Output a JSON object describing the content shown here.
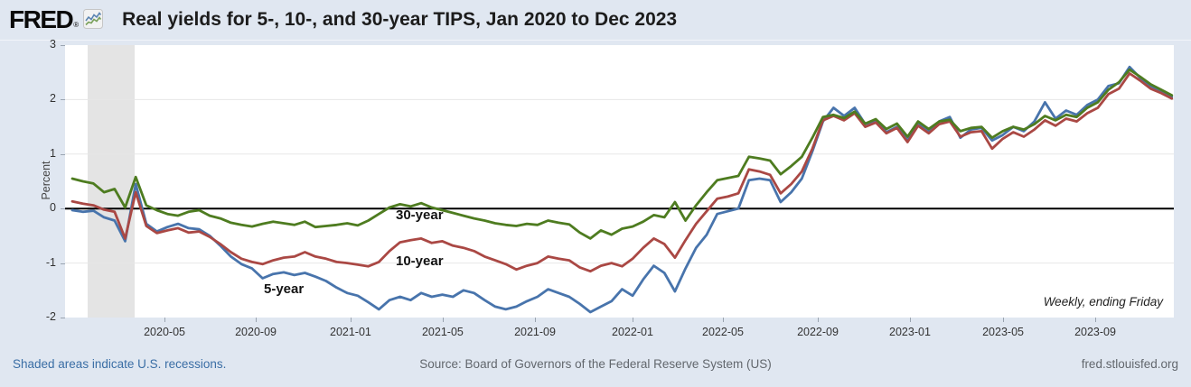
{
  "header": {
    "logo_text": "FRED",
    "logo_registered": "®",
    "title": "Real yields for 5-, 10-, and 30-year TIPS, Jan 2020 to Dec 2023"
  },
  "footer": {
    "recession_note": "Shaded areas indicate U.S. recessions.",
    "source": "Source: Board of Governors of the Federal Reserve System (US)",
    "site": "fred.stlouisfed.org"
  },
  "chart_data": {
    "type": "line",
    "title": "Real yields for 5-, 10-, and 30-year TIPS, Jan 2020 to Dec 2023",
    "ylabel": "Percent",
    "frequency_note": "Weekly, ending Friday",
    "ylim": [
      -2,
      3
    ],
    "yticks": [
      3,
      2,
      1,
      0,
      -1,
      -2
    ],
    "zero_line": true,
    "grid": true,
    "x_start": "2020-01",
    "x_end": "2023-12",
    "sample_interval_weeks": 2,
    "xticks": [
      {
        "label": "2020-05",
        "pos": 0.0897
      },
      {
        "label": "2020-09",
        "pos": 0.172
      },
      {
        "label": "2021-01",
        "pos": 0.2575
      },
      {
        "label": "2021-05",
        "pos": 0.3406
      },
      {
        "label": "2021-09",
        "pos": 0.4238
      },
      {
        "label": "2022-01",
        "pos": 0.5118
      },
      {
        "label": "2022-05",
        "pos": 0.5933
      },
      {
        "label": "2022-09",
        "pos": 0.6789
      },
      {
        "label": "2023-01",
        "pos": 0.762
      },
      {
        "label": "2023-05",
        "pos": 0.846
      },
      {
        "label": "2023-09",
        "pos": 0.9291
      }
    ],
    "recession_band": {
      "pos_start": 0.0204,
      "pos_end": 0.0628,
      "color": "#e4e4e4"
    },
    "series": [
      {
        "name": "5-year",
        "color": "#4874AC",
        "values": [
          -0.03,
          -0.06,
          -0.04,
          -0.16,
          -0.22,
          -0.6,
          0.45,
          -0.28,
          -0.42,
          -0.34,
          -0.28,
          -0.36,
          -0.38,
          -0.5,
          -0.68,
          -0.88,
          -1.02,
          -1.1,
          -1.28,
          -1.2,
          -1.17,
          -1.22,
          -1.18,
          -1.25,
          -1.33,
          -1.45,
          -1.55,
          -1.6,
          -1.72,
          -1.85,
          -1.68,
          -1.62,
          -1.68,
          -1.55,
          -1.62,
          -1.58,
          -1.62,
          -1.5,
          -1.55,
          -1.68,
          -1.8,
          -1.85,
          -1.8,
          -1.7,
          -1.62,
          -1.48,
          -1.55,
          -1.62,
          -1.75,
          -1.9,
          -1.8,
          -1.7,
          -1.48,
          -1.6,
          -1.3,
          -1.05,
          -1.18,
          -1.52,
          -1.1,
          -0.72,
          -0.48,
          -0.1,
          -0.05,
          0.0,
          0.52,
          0.55,
          0.52,
          0.12,
          0.3,
          0.55,
          1.05,
          1.6,
          1.85,
          1.7,
          1.85,
          1.55,
          1.62,
          1.4,
          1.5,
          1.25,
          1.55,
          1.42,
          1.6,
          1.68,
          1.3,
          1.45,
          1.48,
          1.25,
          1.35,
          1.5,
          1.42,
          1.6,
          1.95,
          1.65,
          1.8,
          1.72,
          1.9,
          2.0,
          2.25,
          2.3,
          2.6,
          2.4,
          2.25,
          2.15,
          2.05
        ]
      },
      {
        "name": "10-year",
        "color": "#AA4844",
        "values": [
          0.13,
          0.09,
          0.06,
          -0.02,
          -0.06,
          -0.55,
          0.3,
          -0.32,
          -0.45,
          -0.4,
          -0.36,
          -0.44,
          -0.42,
          -0.52,
          -0.65,
          -0.8,
          -0.92,
          -0.98,
          -1.02,
          -0.95,
          -0.9,
          -0.88,
          -0.8,
          -0.88,
          -0.92,
          -0.98,
          -1.0,
          -1.03,
          -1.06,
          -0.98,
          -0.78,
          -0.62,
          -0.58,
          -0.55,
          -0.63,
          -0.6,
          -0.68,
          -0.72,
          -0.78,
          -0.88,
          -0.95,
          -1.02,
          -1.12,
          -1.05,
          -1.0,
          -0.88,
          -0.92,
          -0.95,
          -1.08,
          -1.15,
          -1.05,
          -1.0,
          -1.06,
          -0.92,
          -0.72,
          -0.55,
          -0.65,
          -0.9,
          -0.58,
          -0.28,
          -0.05,
          0.18,
          0.22,
          0.28,
          0.72,
          0.68,
          0.62,
          0.28,
          0.45,
          0.68,
          1.1,
          1.62,
          1.7,
          1.62,
          1.75,
          1.5,
          1.58,
          1.38,
          1.48,
          1.22,
          1.52,
          1.38,
          1.55,
          1.6,
          1.32,
          1.4,
          1.42,
          1.1,
          1.28,
          1.4,
          1.32,
          1.45,
          1.62,
          1.52,
          1.65,
          1.6,
          1.75,
          1.85,
          2.1,
          2.2,
          2.48,
          2.35,
          2.2,
          2.12,
          2.02
        ]
      },
      {
        "name": "30-year",
        "color": "#4E7C20",
        "values": [
          0.55,
          0.5,
          0.46,
          0.3,
          0.36,
          0.02,
          0.58,
          0.06,
          -0.03,
          -0.1,
          -0.13,
          -0.06,
          -0.03,
          -0.13,
          -0.18,
          -0.26,
          -0.3,
          -0.33,
          -0.28,
          -0.24,
          -0.27,
          -0.3,
          -0.24,
          -0.34,
          -0.32,
          -0.3,
          -0.27,
          -0.31,
          -0.22,
          -0.1,
          0.02,
          0.08,
          0.04,
          0.1,
          0.02,
          -0.03,
          -0.08,
          -0.13,
          -0.18,
          -0.22,
          -0.27,
          -0.3,
          -0.32,
          -0.28,
          -0.3,
          -0.22,
          -0.26,
          -0.29,
          -0.44,
          -0.55,
          -0.4,
          -0.48,
          -0.37,
          -0.33,
          -0.24,
          -0.12,
          -0.16,
          0.12,
          -0.22,
          0.06,
          0.3,
          0.52,
          0.56,
          0.6,
          0.95,
          0.92,
          0.88,
          0.63,
          0.78,
          0.95,
          1.3,
          1.68,
          1.72,
          1.66,
          1.78,
          1.56,
          1.64,
          1.46,
          1.56,
          1.32,
          1.6,
          1.46,
          1.6,
          1.63,
          1.42,
          1.48,
          1.5,
          1.3,
          1.42,
          1.5,
          1.45,
          1.55,
          1.7,
          1.62,
          1.72,
          1.68,
          1.85,
          1.95,
          2.18,
          2.32,
          2.55,
          2.42,
          2.28,
          2.18,
          2.08
        ]
      }
    ]
  }
}
